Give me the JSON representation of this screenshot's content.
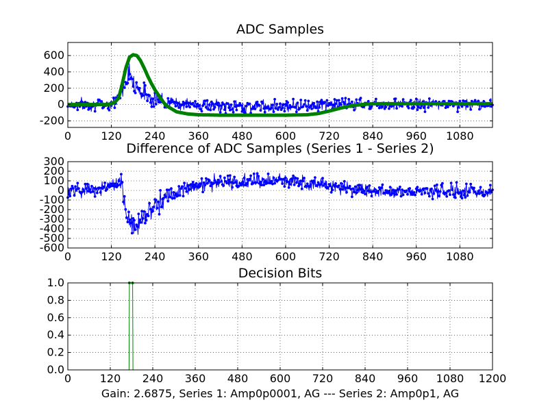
{
  "chart_data": [
    {
      "type": "line",
      "title": "ADC Samples",
      "xlabel": "",
      "ylabel": "",
      "xlim": [
        0,
        1170
      ],
      "ylim": [
        -280,
        760
      ],
      "x_ticks": [
        0,
        120,
        240,
        360,
        480,
        600,
        720,
        840,
        960,
        1080
      ],
      "y_ticks": [
        600,
        400,
        200,
        0,
        -200
      ],
      "grid": true,
      "series": [
        {
          "name": "Series 1",
          "color": "#0000ff",
          "marker": "dot",
          "x": [
            0,
            30,
            60,
            90,
            110,
            120,
            130,
            140,
            150,
            160,
            170,
            180,
            190,
            200,
            210,
            220,
            240,
            270,
            300,
            330,
            360,
            420,
            480,
            540,
            600,
            660,
            690,
            720,
            750,
            780,
            810,
            840,
            870,
            900,
            960,
            1020,
            1080,
            1170
          ],
          "y": [
            0,
            0,
            0,
            0,
            5,
            15,
            40,
            90,
            180,
            300,
            380,
            300,
            220,
            170,
            130,
            110,
            70,
            30,
            10,
            0,
            -10,
            -20,
            -25,
            -20,
            -15,
            -10,
            -5,
            0,
            5,
            5,
            10,
            10,
            5,
            5,
            5,
            5,
            5,
            5
          ],
          "noise": 55
        },
        {
          "name": "Series 2",
          "color": "#008000",
          "marker": "thick",
          "x": [
            0,
            60,
            110,
            120,
            130,
            140,
            150,
            160,
            170,
            180,
            190,
            200,
            210,
            220,
            230,
            240,
            255,
            270,
            300,
            330,
            360,
            420,
            480,
            540,
            600,
            660,
            690,
            720,
            750,
            780,
            810,
            840,
            900,
            960,
            1080,
            1170
          ],
          "y": [
            0,
            0,
            0,
            10,
            30,
            80,
            250,
            450,
            580,
            610,
            600,
            540,
            450,
            350,
            260,
            180,
            80,
            -10,
            -90,
            -115,
            -125,
            -130,
            -130,
            -130,
            -130,
            -125,
            -110,
            -80,
            -45,
            -15,
            0,
            10,
            10,
            10,
            10,
            10
          ],
          "noise": 0
        }
      ]
    },
    {
      "type": "line",
      "title": "Difference of ADC Samples (Series 1 - Series 2)",
      "xlabel": "",
      "ylabel": "",
      "xlim": [
        0,
        1170
      ],
      "ylim": [
        -600,
        300
      ],
      "x_ticks": [
        0,
        120,
        240,
        360,
        480,
        600,
        720,
        840,
        960,
        1080
      ],
      "y_ticks": [
        300,
        200,
        100,
        0,
        -100,
        -200,
        -300,
        -400,
        -500,
        -600
      ],
      "grid": true,
      "series": [
        {
          "name": "Difference",
          "color": "#0000ff",
          "marker": "dot",
          "x": [
            0,
            60,
            100,
            120,
            140,
            150,
            160,
            170,
            180,
            190,
            200,
            220,
            240,
            270,
            300,
            330,
            360,
            420,
            480,
            540,
            600,
            660,
            690,
            720,
            750,
            780,
            810,
            840,
            900,
            960,
            1080,
            1170
          ],
          "y": [
            0,
            10,
            30,
            50,
            60,
            0,
            -200,
            -330,
            -380,
            -360,
            -300,
            -220,
            -150,
            -80,
            -20,
            30,
            60,
            80,
            90,
            100,
            100,
            90,
            70,
            50,
            30,
            20,
            10,
            0,
            -10,
            -10,
            -10,
            -10
          ],
          "noise": 55
        }
      ]
    },
    {
      "type": "line",
      "title": "Decision Bits",
      "xlabel": "Gain: 2.6875, Series 1: Amp0p0001, AG --- Series 2: Amp0p1, AG",
      "ylabel": "",
      "xlim": [
        0,
        1200
      ],
      "ylim": [
        0,
        1
      ],
      "x_ticks": [
        0,
        120,
        240,
        360,
        480,
        600,
        720,
        840,
        960,
        1080,
        1200
      ],
      "y_ticks": [
        "1.0",
        "0.8",
        "0.6",
        "0.4",
        "0.2",
        "0.0"
      ],
      "grid": true,
      "series": [
        {
          "name": "Decision",
          "color": "#008000",
          "x": [
            0,
            173,
            174,
            183,
            184,
            1200
          ],
          "y": [
            0,
            0,
            1,
            1,
            0,
            0
          ]
        }
      ]
    }
  ]
}
